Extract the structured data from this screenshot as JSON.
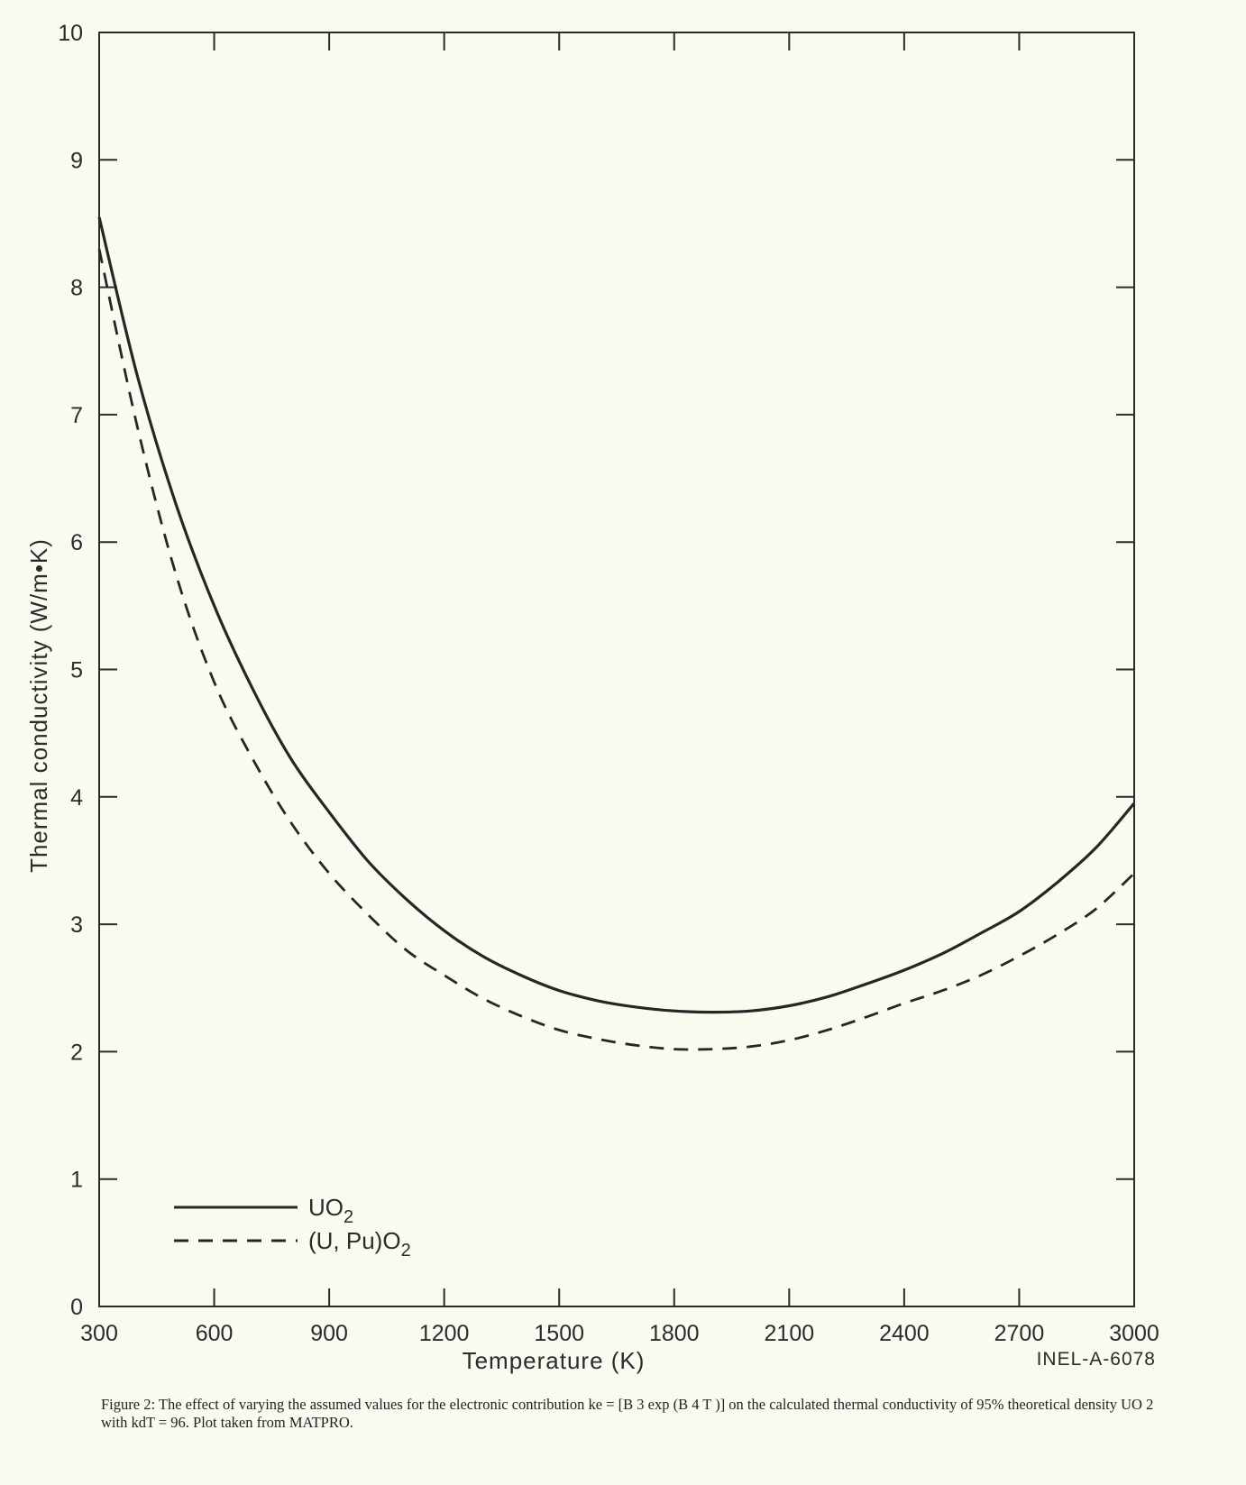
{
  "chart_data": {
    "type": "line",
    "title": "",
    "xlabel": "Temperature (K)",
    "ylabel": "Thermal conductivity (W/m•K)",
    "xlim": [
      300,
      3000
    ],
    "ylim": [
      0,
      10
    ],
    "x_ticks": [
      "300",
      "600",
      "900",
      "1200",
      "1500",
      "1800",
      "2100",
      "2400",
      "2700",
      "3000"
    ],
    "y_ticks": [
      "0",
      "1",
      "2",
      "3",
      "4",
      "5",
      "6",
      "7",
      "8",
      "9",
      "10"
    ],
    "grid": false,
    "legend_position": "bottom-left",
    "series": [
      {
        "name": "UO2",
        "legend_main": "UO",
        "legend_sub": "2",
        "style": "solid",
        "x": [
          300,
          400,
          500,
          600,
          700,
          800,
          900,
          1000,
          1100,
          1200,
          1300,
          1400,
          1500,
          1600,
          1700,
          1800,
          1900,
          2000,
          2100,
          2200,
          2300,
          2400,
          2500,
          2600,
          2700,
          2800,
          2900,
          3000
        ],
        "y": [
          8.55,
          7.3,
          6.3,
          5.5,
          4.85,
          4.3,
          3.88,
          3.5,
          3.2,
          2.95,
          2.75,
          2.6,
          2.48,
          2.4,
          2.35,
          2.32,
          2.31,
          2.32,
          2.36,
          2.43,
          2.53,
          2.64,
          2.77,
          2.93,
          3.1,
          3.33,
          3.6,
          3.95
        ]
      },
      {
        "name": "(U, Pu)O2",
        "legend_main": "(U, Pu)O",
        "legend_sub": "2",
        "style": "dashed",
        "x": [
          300,
          400,
          500,
          600,
          700,
          800,
          900,
          1000,
          1100,
          1200,
          1300,
          1400,
          1500,
          1600,
          1700,
          1800,
          1900,
          2000,
          2100,
          2200,
          2300,
          2400,
          2500,
          2600,
          2700,
          2800,
          2900,
          3000
        ],
        "y": [
          8.3,
          6.9,
          5.75,
          4.9,
          4.3,
          3.8,
          3.4,
          3.08,
          2.8,
          2.6,
          2.42,
          2.28,
          2.17,
          2.1,
          2.05,
          2.02,
          2.02,
          2.04,
          2.09,
          2.17,
          2.27,
          2.38,
          2.48,
          2.6,
          2.75,
          2.92,
          3.12,
          3.4
        ]
      }
    ],
    "reference_id": "INEL-A-6078"
  },
  "caption": "Figure 2: The effect of varying the assumed values for the electronic contribution ke = [B 3 exp (B 4 T )] on the calculated thermal conductivity of 95% theoretical density UO 2 with kdT = 96. Plot taken from MATPRO."
}
